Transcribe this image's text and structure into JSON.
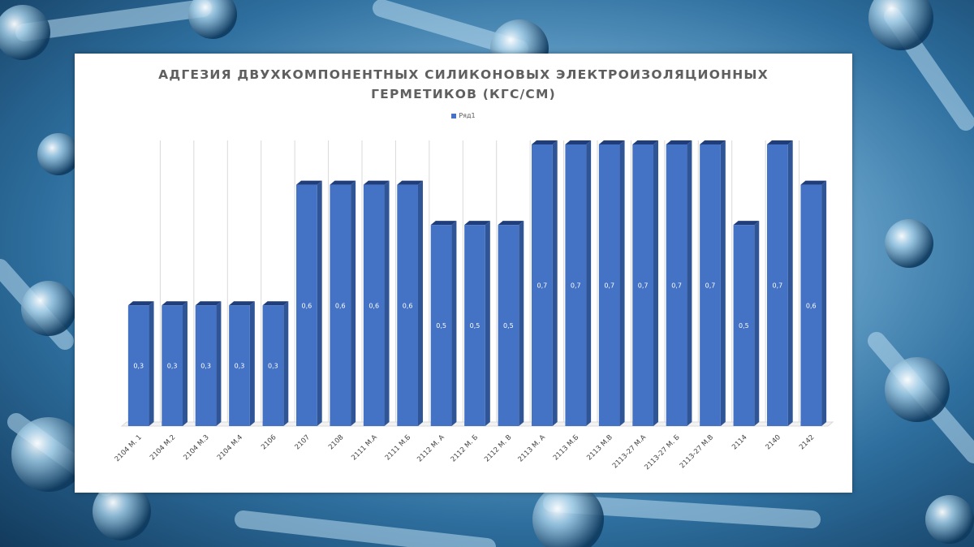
{
  "colors": {
    "bar_front": "#4472c4",
    "bar_side": "#2f5597",
    "bar_top": "#1f3d7a",
    "gridline": "#d9d9d9",
    "label_text": "#ffffff",
    "tick_text": "#404040"
  },
  "chart_data": {
    "type": "bar",
    "title": "АДГЕЗИЯ ДВУХКОМПОНЕНТНЫХ СИЛИКОНОВЫХ ЭЛЕКТРОИЗОЛЯЦИОННЫХ ГЕРМЕТИКОВ (КГС/СМ)",
    "title_line1": "АДГЕЗИЯ ДВУХКОМПОНЕНТНЫХ СИЛИКОНОВЫХ ЭЛЕКТРОИЗОЛЯЦИОННЫХ",
    "title_line2": "ГЕРМЕТИКОВ (КГС/СМ)",
    "legend_position": "top",
    "grid": true,
    "style": "3d-column",
    "ylim": [
      0,
      0.7
    ],
    "categories": [
      "2104 М. 1",
      "2104 М.2",
      "2104 М.3",
      "2104 М.4",
      "2106",
      "2107",
      "2108",
      "2111 М.А",
      "2111 М.Б",
      "2112 М. А",
      "2112 М. Б",
      "2112 М. В",
      "2113 М. А",
      "2113 М.Б",
      "2113 М.В",
      "2113-27 М.А",
      "2113-27 М. Б",
      "2113-27 М.В",
      "2114",
      "2140",
      "2142"
    ],
    "series": [
      {
        "name": "Ряд1",
        "values": [
          0.3,
          0.3,
          0.3,
          0.3,
          0.3,
          0.6,
          0.6,
          0.6,
          0.6,
          0.5,
          0.5,
          0.5,
          0.7,
          0.7,
          0.7,
          0.7,
          0.7,
          0.7,
          0.5,
          0.7,
          0.6
        ],
        "labels": [
          "0,3",
          "0,3",
          "0,3",
          "0,3",
          "0,3",
          "0,6",
          "0,6",
          "0,6",
          "0,6",
          "0,5",
          "0,5",
          "0,5",
          "0,7",
          "0,7",
          "0,7",
          "0,7",
          "0,7",
          "0,7",
          "0,5",
          "0,7",
          "0,6"
        ]
      }
    ]
  }
}
